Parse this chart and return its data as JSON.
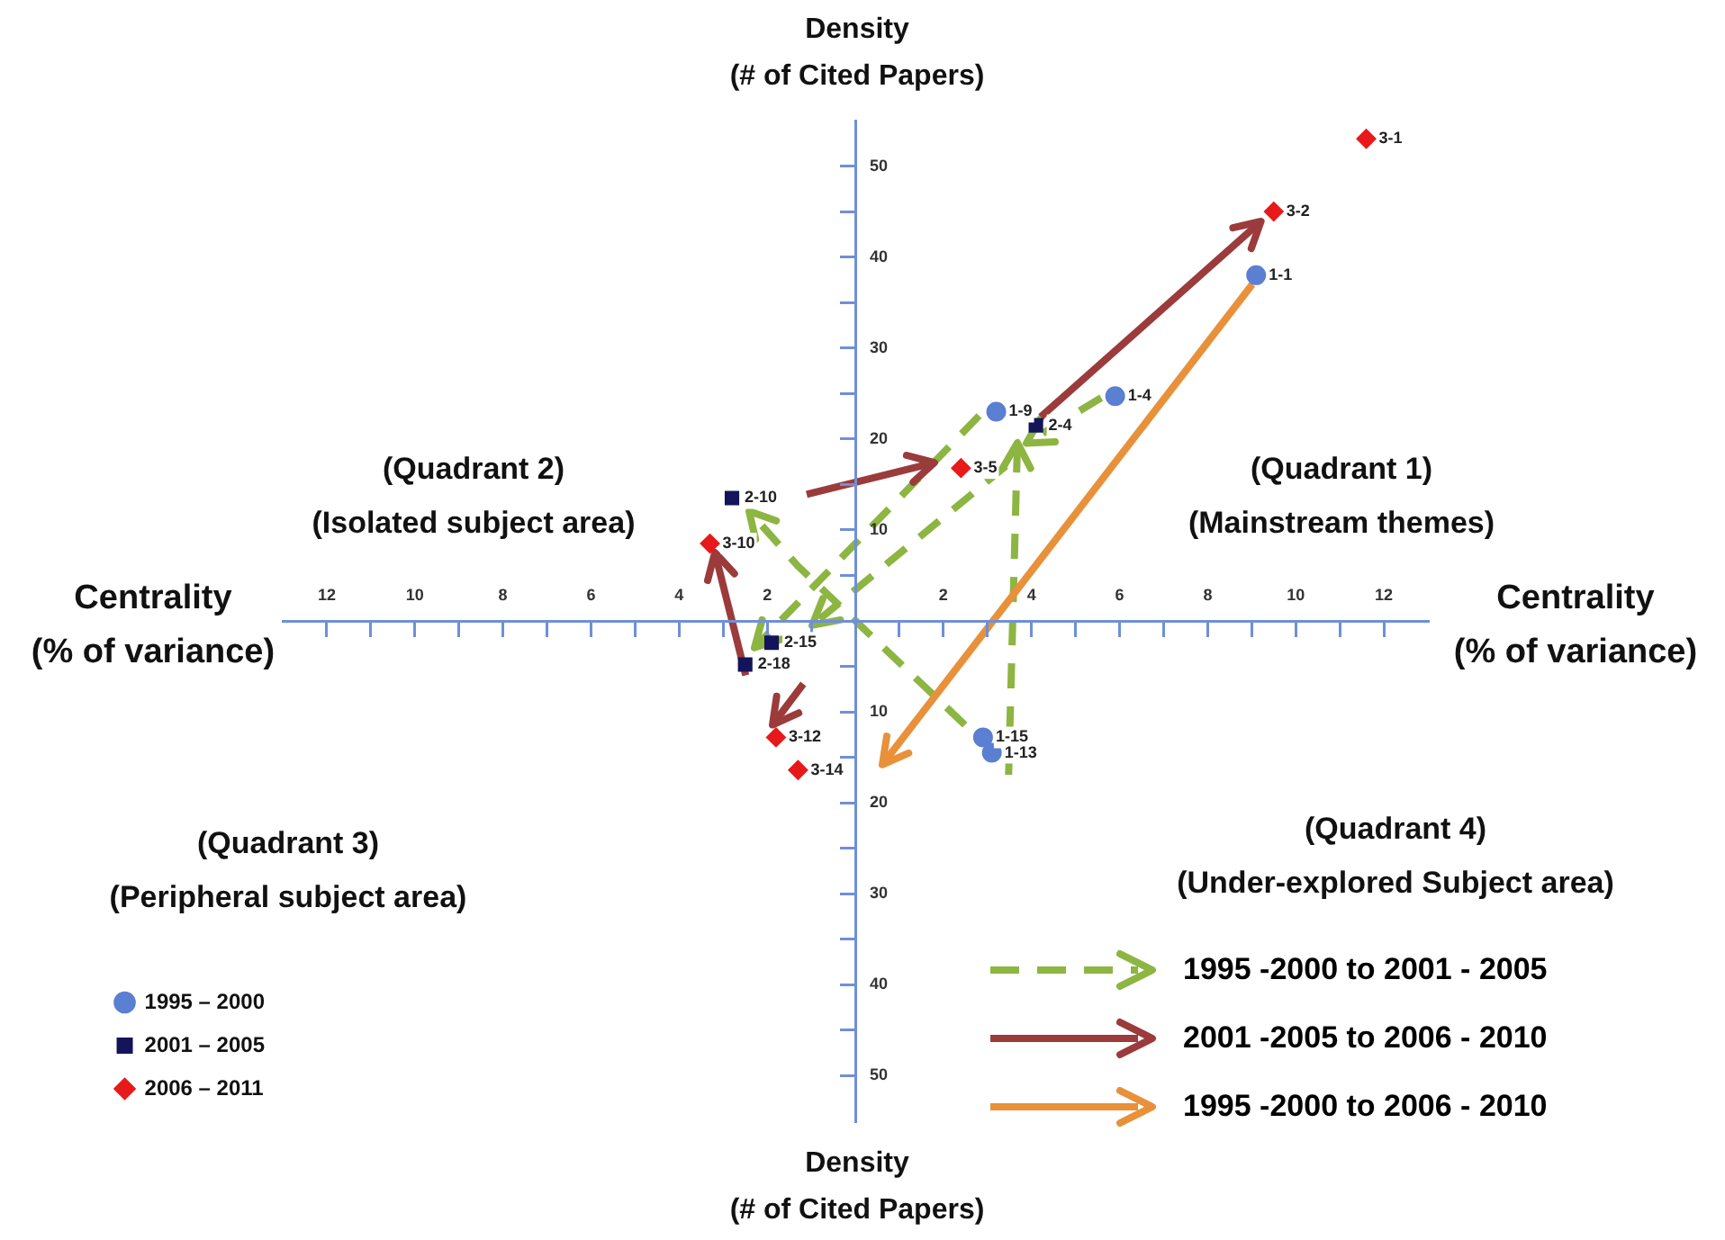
{
  "chart_data": {
    "type": "scatter",
    "xlabel": "Centrality\n(% of variance)",
    "ylabel": "Density\n(# of Cited Papers)",
    "xlim": [
      -13,
      13
    ],
    "ylim": [
      -55,
      55
    ],
    "xticks": [
      {
        "value": -12,
        "label": "12"
      },
      {
        "value": -11,
        "label": null
      },
      {
        "value": -10,
        "label": "10"
      },
      {
        "value": -9,
        "label": null
      },
      {
        "value": -8,
        "label": "8"
      },
      {
        "value": -7,
        "label": null
      },
      {
        "value": -6,
        "label": "6"
      },
      {
        "value": -5,
        "label": null
      },
      {
        "value": -4,
        "label": "4"
      },
      {
        "value": -3,
        "label": null
      },
      {
        "value": -2,
        "label": "2"
      },
      {
        "value": -1,
        "label": null
      },
      {
        "value": 1,
        "label": null
      },
      {
        "value": 2,
        "label": "2"
      },
      {
        "value": 3,
        "label": null
      },
      {
        "value": 4,
        "label": "4"
      },
      {
        "value": 5,
        "label": null
      },
      {
        "value": 6,
        "label": "6"
      },
      {
        "value": 7,
        "label": null
      },
      {
        "value": 8,
        "label": "8"
      },
      {
        "value": 9,
        "label": null
      },
      {
        "value": 10,
        "label": "10"
      },
      {
        "value": 11,
        "label": null
      },
      {
        "value": 12,
        "label": "12"
      }
    ],
    "yticks": [
      {
        "value": -50,
        "label": "50"
      },
      {
        "value": -45,
        "label": null
      },
      {
        "value": -40,
        "label": "40"
      },
      {
        "value": -35,
        "label": null
      },
      {
        "value": -30,
        "label": "30"
      },
      {
        "value": -25,
        "label": null
      },
      {
        "value": -20,
        "label": "20"
      },
      {
        "value": -15,
        "label": null
      },
      {
        "value": -10,
        "label": "10"
      },
      {
        "value": -5,
        "label": null
      },
      {
        "value": 5,
        "label": null
      },
      {
        "value": 10,
        "label": "10"
      },
      {
        "value": 15,
        "label": null
      },
      {
        "value": 20,
        "label": "20"
      },
      {
        "value": 25,
        "label": null
      },
      {
        "value": 30,
        "label": "30"
      },
      {
        "value": 35,
        "label": null
      },
      {
        "value": 40,
        "label": "40"
      },
      {
        "value": 45,
        "label": null
      },
      {
        "value": 50,
        "label": "50"
      }
    ],
    "grid": false,
    "legend": "bottom left",
    "series": [
      {
        "type": "scatter",
        "name": "1995 – 2000",
        "color": "#5b7fd1",
        "marker": "circle",
        "x": [
          3.2,
          5.9,
          9.1,
          2.9,
          3.1
        ],
        "values": [
          23,
          24.7,
          38,
          -12.8,
          -14.5
        ]
      },
      {
        "type": "scatter",
        "name": "2001 – 2005",
        "color": "#14145a",
        "marker": "square",
        "x": [
          4.1,
          -2.8,
          -1.9,
          -2.5
        ],
        "values": [
          21.5,
          13.5,
          -2.4,
          -4.8
        ]
      },
      {
        "type": "scatter",
        "name": "2006 – 2011",
        "color": "#e8191b",
        "marker": "diamond",
        "x": [
          11.6,
          9.5,
          2.4,
          -3.3,
          -1.8,
          -1.3
        ],
        "values": [
          53,
          45,
          16.8,
          8.5,
          -12.8,
          -16.4
        ]
      }
    ],
    "annotations": [
      "(Quadrant 1)\n(Mainstream themes)",
      "(Quadrant 2)\n(Isolated subject area)",
      "(Quadrant 3)\n(Peripheral subject area)",
      "(Quadrant 4)\n(Under-explored Subject area)",
      "1995 -2000 to 2001 - 2005",
      "2001 -2005 to 2006 - 2010",
      "1995 -2000 to 2006 - 2010",
      "Density\n(# of Cited Papers)",
      {
        "text": "1-9",
        "x": 3.2,
        "y": 23
      },
      {
        "text": "1-4",
        "x": 5.9,
        "y": 24.7
      },
      {
        "text": "1-1",
        "x": 9.1,
        "y": 38
      },
      {
        "text": "1-15",
        "x": 2.9,
        "y": -12.8
      },
      {
        "text": "1-13",
        "x": 3.1,
        "y": -14.5
      },
      {
        "text": "2-4",
        "x": 4.1,
        "y": 21.5
      },
      {
        "text": "2-10",
        "x": -2.8,
        "y": 13.5
      },
      {
        "text": "2-15",
        "x": -1.9,
        "y": -2.4
      },
      {
        "text": "2-18",
        "x": -2.5,
        "y": -4.8
      },
      {
        "text": "3-1",
        "x": 11.6,
        "y": 53
      },
      {
        "text": "3-2",
        "x": 9.5,
        "y": 45
      },
      {
        "text": "3-5",
        "x": 2.4,
        "y": 16.8
      },
      {
        "text": "3-10",
        "x": -3.3,
        "y": 8.5
      },
      {
        "text": "3-12",
        "x": -1.8,
        "y": -12.8
      },
      {
        "text": "3-14",
        "x": -1.3,
        "y": -16.4
      }
    ]
  }
}
